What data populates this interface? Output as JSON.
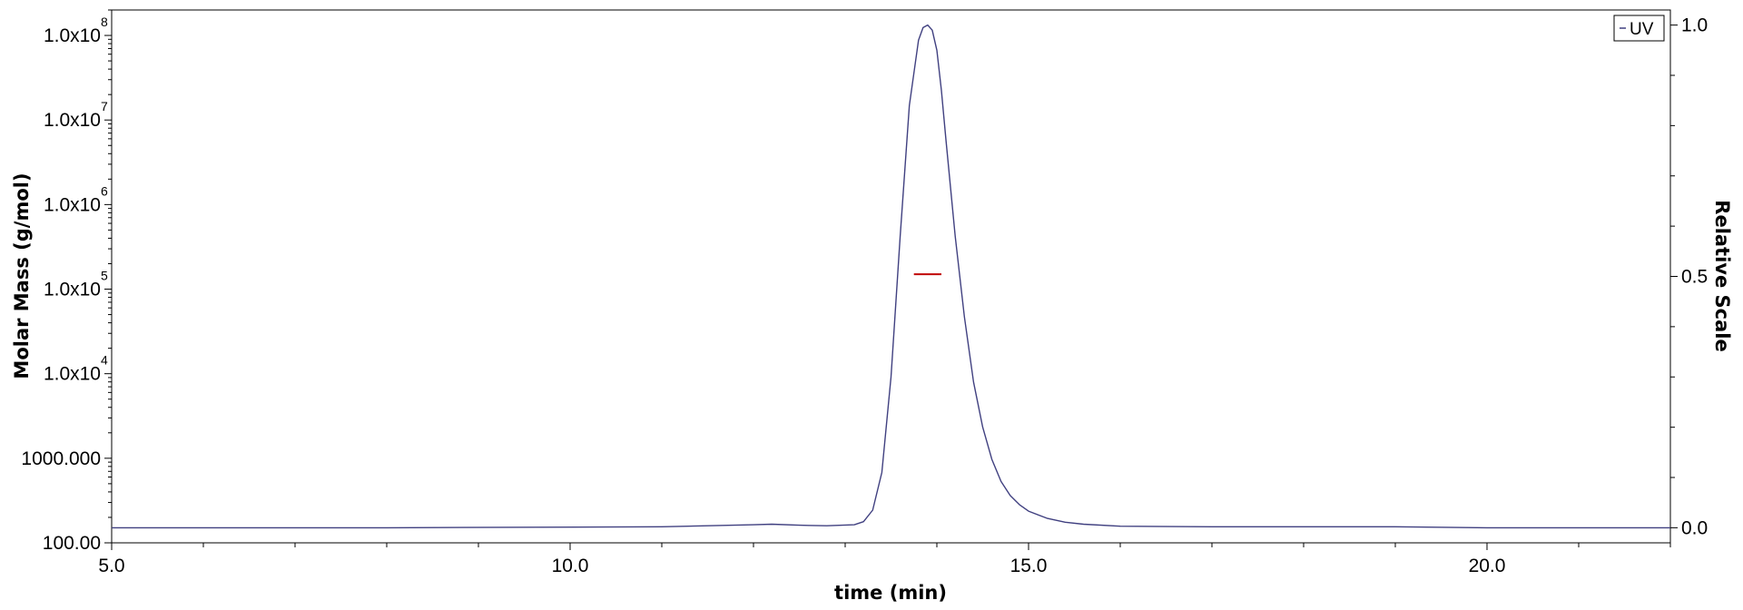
{
  "chart_data": {
    "type": "line",
    "xlabel": "time (min)",
    "ylabel": "Molar Mass (g/mol)",
    "y2label": "Relative Scale",
    "xlim": [
      5.0,
      22.0
    ],
    "x_ticks": [
      {
        "value": 5.0,
        "label": "5.0"
      },
      {
        "value": 10.0,
        "label": "10.0"
      },
      {
        "value": 15.0,
        "label": "15.0"
      },
      {
        "value": 20.0,
        "label": "20.0"
      }
    ],
    "y_scale": "log",
    "ylim": [
      100,
      200000000
    ],
    "y_ticks": [
      {
        "value": 100,
        "label": "100.00",
        "exp": ""
      },
      {
        "value": 1000,
        "label": "1000.000",
        "exp": ""
      },
      {
        "value": 10000,
        "label": "1.0x10",
        "exp": "4"
      },
      {
        "value": 100000,
        "label": "1.0x10",
        "exp": "5"
      },
      {
        "value": 1000000,
        "label": "1.0x10",
        "exp": "6"
      },
      {
        "value": 10000000,
        "label": "1.0x10",
        "exp": "7"
      },
      {
        "value": 100000000,
        "label": "1.0x10",
        "exp": "8"
      }
    ],
    "y2lim": [
      -0.03,
      1.03
    ],
    "y2_ticks": [
      {
        "value": 0.0,
        "label": "0.0"
      },
      {
        "value": 0.5,
        "label": "0.5"
      },
      {
        "value": 1.0,
        "label": "1.0"
      }
    ],
    "legend": {
      "position": "top-right",
      "entries": [
        {
          "label": "UV",
          "color": "#404080"
        }
      ]
    },
    "series": [
      {
        "name": "UV",
        "axis": "right",
        "color": "#404080",
        "x": [
          5.0,
          8.0,
          11.0,
          11.5,
          12.0,
          12.2,
          12.5,
          12.8,
          13.1,
          13.2,
          13.3,
          13.4,
          13.5,
          13.6,
          13.7,
          13.8,
          13.85,
          13.9,
          13.95,
          14.0,
          14.05,
          14.1,
          14.2,
          14.3,
          14.4,
          14.5,
          14.6,
          14.7,
          14.8,
          14.9,
          15.0,
          15.2,
          15.4,
          15.6,
          16.0,
          17.0,
          18.0,
          19.0,
          20.0,
          22.0
        ],
        "y": [
          0.0,
          0.0,
          0.002,
          0.004,
          0.006,
          0.007,
          0.005,
          0.004,
          0.006,
          0.012,
          0.035,
          0.11,
          0.3,
          0.58,
          0.84,
          0.97,
          0.995,
          1.0,
          0.99,
          0.95,
          0.87,
          0.77,
          0.58,
          0.42,
          0.29,
          0.2,
          0.136,
          0.092,
          0.064,
          0.046,
          0.033,
          0.019,
          0.011,
          0.007,
          0.003,
          0.002,
          0.002,
          0.002,
          0.0,
          0.0
        ]
      },
      {
        "name": "Molar Mass",
        "axis": "left",
        "color": "#c00000",
        "x": [
          13.75,
          14.05
        ],
        "y": [
          150000,
          150000
        ]
      }
    ]
  }
}
